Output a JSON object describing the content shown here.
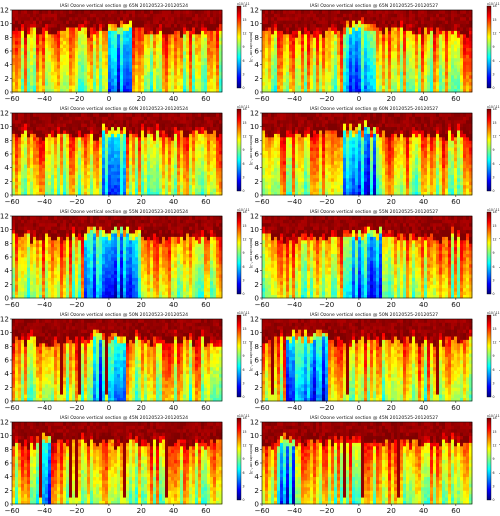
{
  "figure": {
    "title_template": "IASI Ozone vertical section @ {lat} {period}"
  },
  "chart_data": [
    {
      "type": "heatmap",
      "title": "IASI Ozone vertical section @ 65N 20120523-20120524",
      "lat_label": "65N",
      "period": "20120523-20120524",
      "xlim": [
        -60,
        70
      ],
      "ylim": [
        0,
        12
      ],
      "xticks": [
        -60,
        -40,
        -20,
        0,
        20,
        40,
        60
      ],
      "yticks": [
        0,
        2,
        4,
        6,
        8,
        10,
        12
      ],
      "colorbar": {
        "ticks": [
          0,
          3,
          6,
          9,
          12,
          15,
          18
        ],
        "label": "[molecules cm^-3]",
        "scale": "x10^11"
      },
      "blue_core_x": [
        0,
        15
      ]
    },
    {
      "type": "heatmap",
      "title": "IASI Ozone vertical section @ 65N 20120525-20120527",
      "lat_label": "65N",
      "period": "20120525-20120527",
      "xlim": [
        -60,
        70
      ],
      "ylim": [
        0,
        12
      ],
      "xticks": [
        -60,
        -40,
        -20,
        0,
        20,
        40,
        60
      ],
      "yticks": [
        0,
        2,
        4,
        6,
        8,
        10,
        12
      ],
      "colorbar": {
        "ticks": [
          0,
          3,
          6,
          9,
          12,
          15,
          18
        ],
        "label": "[molecules cm^-3]",
        "scale": "x10^11"
      },
      "blue_core_x": [
        -10,
        10
      ]
    },
    {
      "type": "heatmap",
      "title": "IASI Ozone vertical section @ 60N 20120523-20120524",
      "lat_label": "60N",
      "period": "20120523-20120524",
      "xlim": [
        -60,
        70
      ],
      "ylim": [
        0,
        12
      ],
      "xticks": [
        -60,
        -40,
        -20,
        0,
        20,
        40,
        60
      ],
      "yticks": [
        0,
        2,
        4,
        6,
        8,
        10,
        12
      ],
      "colorbar": {
        "ticks": [
          0,
          3,
          6,
          9,
          12,
          15,
          18
        ],
        "label": "[molecules cm^-3]",
        "scale": "x10^11"
      },
      "blue_core_x": [
        -5,
        10
      ]
    },
    {
      "type": "heatmap",
      "title": "IASI Ozone vertical section @ 60N 20120525-20120527",
      "lat_label": "60N",
      "period": "20120525-20120527",
      "xlim": [
        -60,
        70
      ],
      "ylim": [
        0,
        12
      ],
      "xticks": [
        -60,
        -40,
        -20,
        0,
        20,
        40,
        60
      ],
      "yticks": [
        0,
        2,
        4,
        6,
        8,
        10,
        12
      ],
      "colorbar": {
        "ticks": [
          0,
          3,
          6,
          9,
          12,
          15,
          18
        ],
        "label": "[molecules cm^-3]",
        "scale": "x10^11"
      },
      "blue_core_x": [
        -10,
        10
      ]
    },
    {
      "type": "heatmap",
      "title": "IASI Ozone vertical section @ 55N 20120523-20120524",
      "lat_label": "55N",
      "period": "20120523-20120524",
      "xlim": [
        -60,
        70
      ],
      "ylim": [
        0,
        12
      ],
      "xticks": [
        -60,
        -40,
        -20,
        0,
        20,
        40,
        60
      ],
      "yticks": [
        0,
        2,
        4,
        6,
        8,
        10,
        12
      ],
      "colorbar": {
        "ticks": [
          0,
          3,
          6,
          9,
          12,
          15,
          18
        ],
        "label": "[molecules cm^-3]",
        "scale": "x10^11"
      },
      "blue_core_x": [
        -15,
        20
      ]
    },
    {
      "type": "heatmap",
      "title": "IASI Ozone vertical section @ 55N 20120525-20120527",
      "lat_label": "55N",
      "period": "20120525-20120527",
      "xlim": [
        -60,
        70
      ],
      "ylim": [
        0,
        12
      ],
      "xticks": [
        -60,
        -40,
        -20,
        0,
        20,
        40,
        60
      ],
      "yticks": [
        0,
        2,
        4,
        6,
        8,
        10,
        12
      ],
      "colorbar": {
        "ticks": [
          0,
          3,
          6,
          9,
          12,
          15,
          18
        ],
        "label": "[molecules cm^-3]",
        "scale": "x10^11"
      },
      "blue_core_x": [
        -10,
        15
      ]
    },
    {
      "type": "heatmap",
      "title": "IASI Ozone vertical section @ 50N 20120523-20120524",
      "lat_label": "50N",
      "period": "20120523-20120524",
      "xlim": [
        -60,
        70
      ],
      "ylim": [
        0,
        12
      ],
      "xticks": [
        -60,
        -40,
        -20,
        0,
        20,
        40,
        60
      ],
      "yticks": [
        0,
        2,
        4,
        6,
        8,
        10,
        12
      ],
      "colorbar": {
        "ticks": [
          0,
          3,
          6,
          9,
          12,
          15,
          18
        ],
        "label": "[molecules cm^-3]",
        "scale": "x10^11"
      },
      "blue_core_x": [
        -10,
        10
      ]
    },
    {
      "type": "heatmap",
      "title": "IASI Ozone vertical section @ 50N 20120525-20120527",
      "lat_label": "50N",
      "period": "20120525-20120527",
      "xlim": [
        -60,
        70
      ],
      "ylim": [
        0,
        12
      ],
      "xticks": [
        -60,
        -40,
        -20,
        0,
        20,
        40,
        60
      ],
      "yticks": [
        0,
        2,
        4,
        6,
        8,
        10,
        12
      ],
      "colorbar": {
        "ticks": [
          0,
          3,
          6,
          9,
          12,
          15,
          18
        ],
        "label": "[molecules cm^-3]",
        "scale": "x10^11"
      },
      "blue_core_x": [
        -45,
        -20
      ]
    },
    {
      "type": "heatmap",
      "title": "IASI Ozone vertical section @ 45N 20120523-20120524",
      "lat_label": "45N",
      "period": "20120523-20120524",
      "xlim": [
        -60,
        70
      ],
      "ylim": [
        0,
        12
      ],
      "xticks": [
        -60,
        -40,
        -20,
        0,
        20,
        40,
        60
      ],
      "yticks": [
        0,
        2,
        4,
        6,
        8,
        10,
        12
      ],
      "colorbar": {
        "ticks": [
          0,
          3,
          6,
          9,
          12,
          15,
          18
        ],
        "label": "[molecules cm^-3]",
        "scale": "x10^11"
      },
      "blue_core_x": [
        -45,
        -35
      ]
    },
    {
      "type": "heatmap",
      "title": "IASI Ozone vertical section @ 45N 20120525-20120527",
      "lat_label": "45N",
      "period": "20120525-20120527",
      "xlim": [
        -60,
        70
      ],
      "ylim": [
        0,
        12
      ],
      "xticks": [
        -60,
        -40,
        -20,
        0,
        20,
        40,
        60
      ],
      "yticks": [
        0,
        2,
        4,
        6,
        8,
        10,
        12
      ],
      "colorbar": {
        "ticks": [
          0,
          3,
          6,
          9,
          12,
          15,
          18
        ],
        "label": "[molecules cm^-3]",
        "scale": "x10^11"
      },
      "blue_core_x": [
        -50,
        -40
      ]
    }
  ],
  "colors": {
    "colormap": [
      "#00007f",
      "#0000ff",
      "#007fff",
      "#00ffff",
      "#7fff7f",
      "#ffff00",
      "#ff7f00",
      "#ff0000",
      "#7f0000"
    ]
  }
}
